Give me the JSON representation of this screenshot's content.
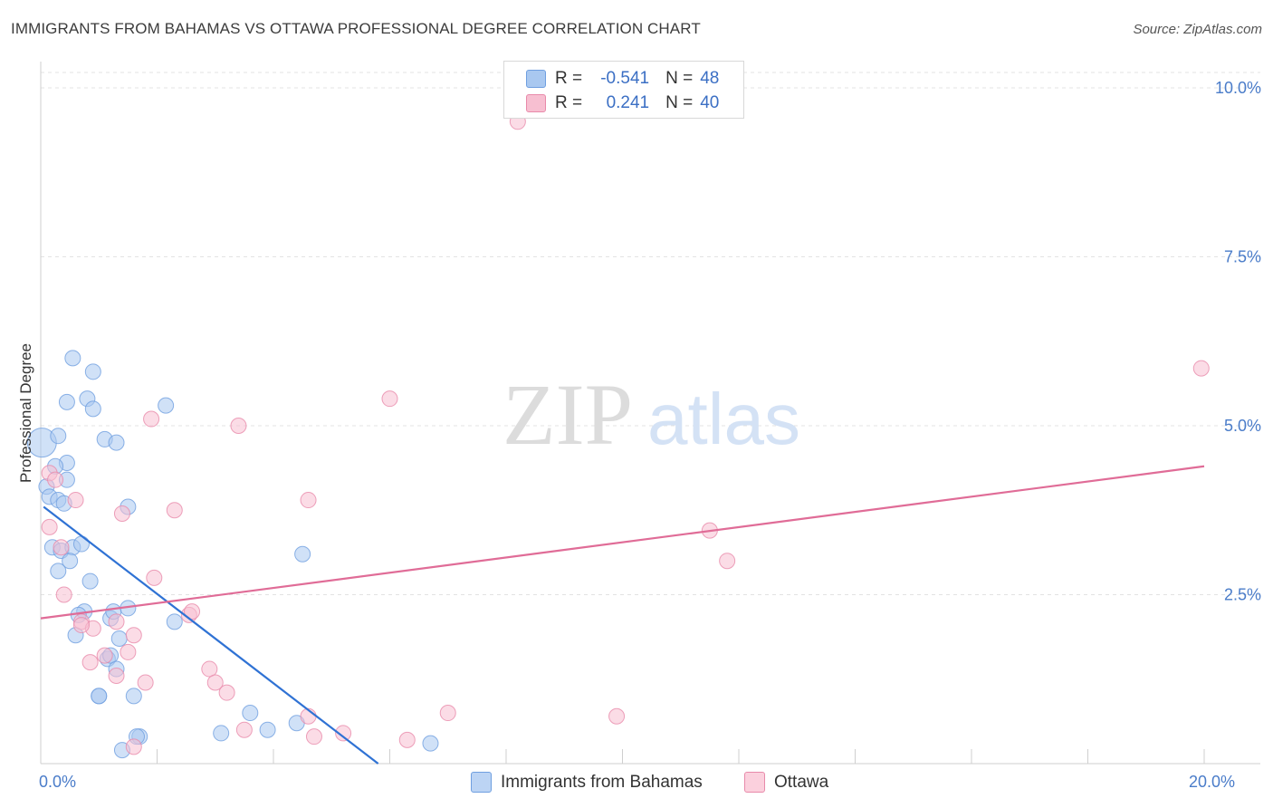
{
  "title": "IMMIGRANTS FROM BAHAMAS VS OTTAWA PROFESSIONAL DEGREE CORRELATION CHART",
  "source": "Source: ZipAtlas.com",
  "watermark": {
    "zip": "ZIP",
    "atlas": "atlas"
  },
  "legend_top": {
    "rows": [
      {
        "r_label": "R =",
        "r_value": "-0.541",
        "n_label": "N =",
        "n_value": "48",
        "color": "#a9c8f0",
        "border": "#6f9fe0"
      },
      {
        "r_label": "R =",
        "r_value": "0.241",
        "n_label": "N =",
        "n_value": "40",
        "color": "#f7bfd1",
        "border": "#e88aaa"
      }
    ]
  },
  "legend_bottom": [
    {
      "label": "Immigrants from Bahamas",
      "color": "#bcd4f4",
      "border": "#6f9fe0"
    },
    {
      "label": "Ottawa",
      "color": "#fbd0dd",
      "border": "#e88aaa"
    }
  ],
  "chart_data": {
    "type": "scatter",
    "title": "IMMIGRANTS FROM BAHAMAS VS OTTAWA PROFESSIONAL DEGREE CORRELATION CHART",
    "xlabel": "",
    "ylabel": "Professional Degree",
    "xlim": [
      0,
      20
    ],
    "ylim": [
      0,
      10
    ],
    "x_tick_labels": [
      {
        "value": 0,
        "label": "0.0%"
      },
      {
        "value": 20,
        "label": "20.0%"
      }
    ],
    "y_tick_labels": [
      {
        "value": 2.5,
        "label": "2.5%"
      },
      {
        "value": 5.0,
        "label": "5.0%"
      },
      {
        "value": 7.5,
        "label": "7.5%"
      },
      {
        "value": 10.0,
        "label": "10.0%"
      }
    ],
    "y_gridlines": [
      2.5,
      5.0,
      7.5,
      10.0
    ],
    "series": [
      {
        "name": "Immigrants from Bahamas",
        "color": "#a9c8f0",
        "edge": "#6f9fe0",
        "points": [
          [
            0.02,
            4.75
          ],
          [
            0.3,
            4.85
          ],
          [
            0.45,
            4.45
          ],
          [
            0.25,
            4.4
          ],
          [
            0.1,
            4.1
          ],
          [
            0.15,
            3.95
          ],
          [
            0.3,
            3.9
          ],
          [
            0.4,
            3.85
          ],
          [
            0.55,
            6.0
          ],
          [
            0.9,
            5.8
          ],
          [
            0.8,
            5.4
          ],
          [
            0.45,
            5.35
          ],
          [
            0.9,
            5.25
          ],
          [
            2.15,
            5.3
          ],
          [
            1.1,
            4.8
          ],
          [
            1.3,
            4.75
          ],
          [
            1.5,
            3.8
          ],
          [
            0.2,
            3.2
          ],
          [
            0.35,
            3.15
          ],
          [
            0.55,
            3.2
          ],
          [
            0.7,
            3.25
          ],
          [
            0.5,
            3.0
          ],
          [
            0.3,
            2.85
          ],
          [
            0.85,
            2.7
          ],
          [
            4.5,
            3.1
          ],
          [
            0.75,
            2.25
          ],
          [
            0.65,
            2.2
          ],
          [
            1.2,
            2.15
          ],
          [
            1.25,
            2.25
          ],
          [
            1.5,
            2.3
          ],
          [
            2.3,
            2.1
          ],
          [
            0.6,
            1.9
          ],
          [
            1.35,
            1.85
          ],
          [
            1.15,
            1.55
          ],
          [
            1.2,
            1.6
          ],
          [
            1.3,
            1.4
          ],
          [
            1.0,
            1.0
          ],
          [
            1.6,
            1.0
          ],
          [
            3.6,
            0.75
          ],
          [
            4.4,
            0.6
          ],
          [
            3.9,
            0.5
          ],
          [
            3.1,
            0.45
          ],
          [
            1.7,
            0.4
          ],
          [
            1.4,
            0.2
          ],
          [
            6.7,
            0.3
          ],
          [
            1.65,
            0.4
          ],
          [
            1.0,
            1.0
          ],
          [
            0.45,
            4.2
          ]
        ],
        "trend": {
          "x0": 0.05,
          "y0": 3.8,
          "x1": 5.8,
          "y1": 0.0
        }
      },
      {
        "name": "Ottawa",
        "color": "#f7bfd1",
        "edge": "#e88aaa",
        "points": [
          [
            8.2,
            9.5
          ],
          [
            0.15,
            4.3
          ],
          [
            0.25,
            4.2
          ],
          [
            0.6,
            3.9
          ],
          [
            0.15,
            3.5
          ],
          [
            1.4,
            3.7
          ],
          [
            2.3,
            3.75
          ],
          [
            4.6,
            3.9
          ],
          [
            1.9,
            5.1
          ],
          [
            3.4,
            5.0
          ],
          [
            6.0,
            5.4
          ],
          [
            0.35,
            3.2
          ],
          [
            0.4,
            2.5
          ],
          [
            1.95,
            2.75
          ],
          [
            0.7,
            2.1
          ],
          [
            0.9,
            2.0
          ],
          [
            1.3,
            2.1
          ],
          [
            1.6,
            1.9
          ],
          [
            2.55,
            2.2
          ],
          [
            2.6,
            2.25
          ],
          [
            1.5,
            1.65
          ],
          [
            0.85,
            1.5
          ],
          [
            1.1,
            1.6
          ],
          [
            1.3,
            1.3
          ],
          [
            1.8,
            1.2
          ],
          [
            2.9,
            1.4
          ],
          [
            3.0,
            1.2
          ],
          [
            3.2,
            1.05
          ],
          [
            11.5,
            3.45
          ],
          [
            11.8,
            3.0
          ],
          [
            4.6,
            0.7
          ],
          [
            5.2,
            0.45
          ],
          [
            4.7,
            0.4
          ],
          [
            6.3,
            0.35
          ],
          [
            7.0,
            0.75
          ],
          [
            9.9,
            0.7
          ],
          [
            1.6,
            0.25
          ],
          [
            3.5,
            0.5
          ],
          [
            19.95,
            5.85
          ],
          [
            0.7,
            2.05
          ]
        ],
        "trend": {
          "x0": 0.0,
          "y0": 2.15,
          "x1": 20.0,
          "y1": 4.4
        }
      }
    ]
  }
}
